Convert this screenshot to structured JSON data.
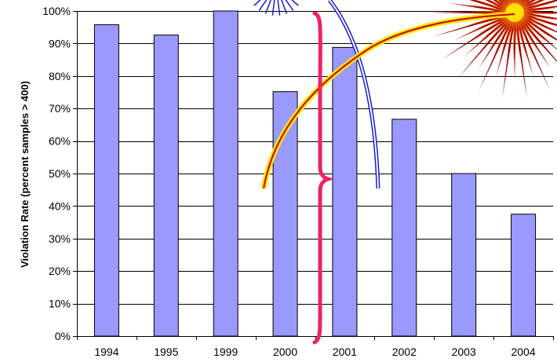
{
  "chart_data": {
    "type": "bar",
    "categories": [
      "1994",
      "1995",
      "1999",
      "2000",
      "2001",
      "2002",
      "2003",
      "2004"
    ],
    "values": [
      95.8,
      92.6,
      100,
      75.2,
      88.8,
      66.7,
      50.0,
      37.5
    ],
    "title": "",
    "xlabel": "",
    "ylabel": "Violation Rate (percent samples > 400)",
    "ylim": [
      0,
      100
    ],
    "yticks": [
      "0%",
      "10%",
      "20%",
      "30%",
      "40%",
      "50%",
      "60%",
      "70%",
      "80%",
      "90%",
      "100%"
    ],
    "grid": true,
    "legend": "none",
    "bar_color": "#9999ff",
    "bar_edge_color": "#000000",
    "decoration_colors": {
      "burst_outer": "#a00000",
      "burst_mid": "#e85c10",
      "burst_core": "#ffe000",
      "blue_firework": "#1a1ad8",
      "rocket_trail": "#c80000",
      "rocket_trail_glow": "#ffe600",
      "brace": "#f0206a"
    }
  }
}
